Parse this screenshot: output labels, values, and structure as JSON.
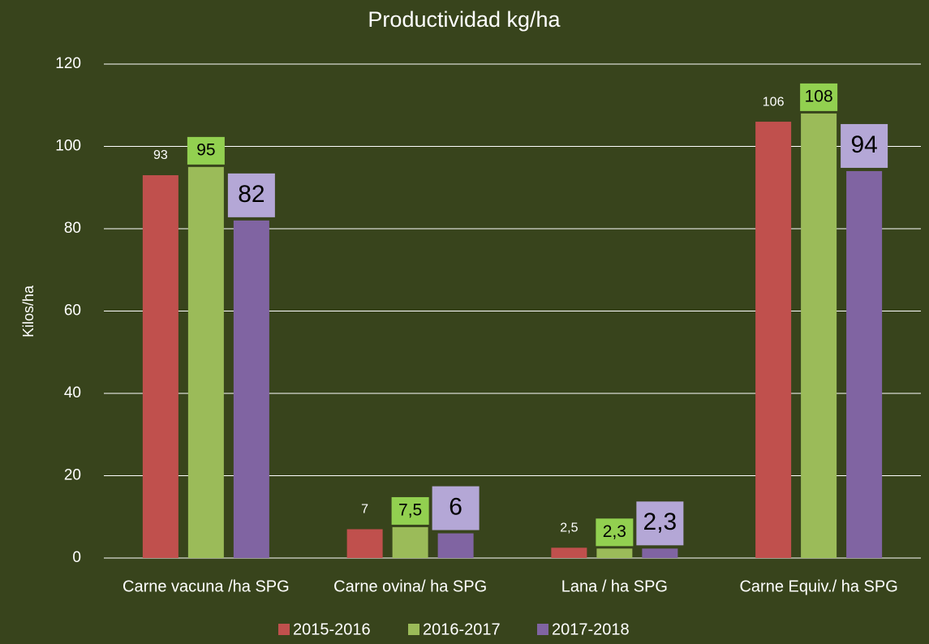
{
  "chart_data": {
    "type": "bar",
    "title": "Productividad kg/ha",
    "y_label": "Kilos/ha",
    "categories": [
      "Carne vacuna /ha SPG",
      "Carne ovina/ ha SPG",
      "Lana / ha SPG",
      "Carne Equiv./ ha SPG"
    ],
    "series": [
      {
        "name": "2015-2016",
        "color": "#c0504d",
        "values": [
          93,
          7,
          2.5,
          106
        ],
        "value_labels": [
          "93",
          "7",
          "2,5",
          "106"
        ]
      },
      {
        "name": "2016-2017",
        "color": "#9bbb59",
        "values": [
          95,
          7.5,
          2.3,
          108
        ],
        "value_labels": [
          "95",
          "7,5",
          "2,3",
          "108"
        ]
      },
      {
        "name": "2017-2018",
        "color": "#8064a2",
        "values": [
          82,
          6,
          2.3,
          94
        ],
        "value_labels": [
          "82",
          "6",
          "2,3",
          "94"
        ]
      }
    ],
    "ylim": [
      0,
      120
    ],
    "yticks": [
      0,
      20,
      40,
      60,
      80,
      100,
      120
    ],
    "grid": true,
    "legend": "bottom"
  }
}
